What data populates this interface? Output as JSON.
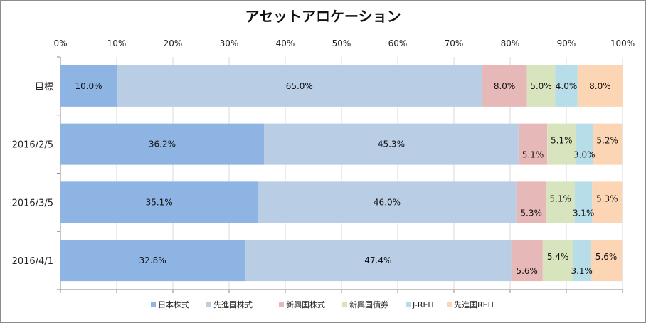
{
  "chart_data": {
    "type": "bar",
    "orientation": "horizontal",
    "stacked": true,
    "title": "アセットアロケーション",
    "xlim": [
      0,
      100
    ],
    "x_ticks": [
      "0%",
      "10%",
      "20%",
      "30%",
      "40%",
      "50%",
      "60%",
      "70%",
      "80%",
      "90%",
      "100%"
    ],
    "categories": [
      "目標",
      "2016/2/5",
      "2016/3/5",
      "2016/4/1"
    ],
    "grid": "vertical gridlines",
    "legend_position": "bottom",
    "series": [
      {
        "name": "日本株式",
        "color": "#8eb4e3",
        "values": [
          10.0,
          36.2,
          35.1,
          32.8
        ],
        "labels": [
          "10.0%",
          "36.2%",
          "35.1%",
          "32.8%"
        ]
      },
      {
        "name": "先進国株式",
        "color": "#b9cde5",
        "values": [
          65.0,
          45.3,
          46.0,
          47.4
        ],
        "labels": [
          "65.0%",
          "45.3%",
          "46.0%",
          "47.4%"
        ]
      },
      {
        "name": "新興国株式",
        "color": "#e6b9b8",
        "values": [
          8.0,
          5.1,
          5.3,
          5.6
        ],
        "labels": [
          "8.0%",
          "5.1%",
          "5.3%",
          "5.6%"
        ]
      },
      {
        "name": "新興国債券",
        "color": "#d7e4bd",
        "values": [
          5.0,
          5.1,
          5.1,
          5.4
        ],
        "labels": [
          "5.0%",
          "5.1%",
          "5.1%",
          "5.4%"
        ]
      },
      {
        "name": "J-REIT",
        "color": "#b7dee8",
        "values": [
          4.0,
          3.0,
          3.1,
          3.1
        ],
        "labels": [
          "4.0%",
          "3.0%",
          "3.1%",
          "3.1%"
        ]
      },
      {
        "name": "先進国REIT",
        "color": "#fcd5b5",
        "values": [
          8.0,
          5.2,
          5.3,
          5.6
        ],
        "labels": [
          "8.0%",
          "5.2%",
          "5.3%",
          "5.6%"
        ]
      }
    ]
  }
}
